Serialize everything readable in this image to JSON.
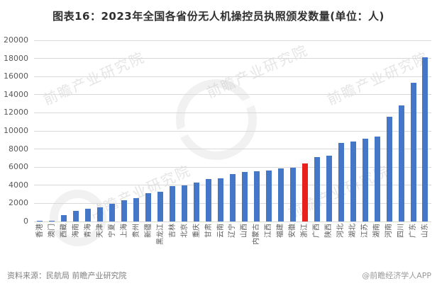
{
  "header": {
    "title": "图表16：2023年全国各省份无人机操控员执照颁发数量(单位：人)"
  },
  "footer": {
    "source": "资料来源：民航局 前瞻产业研究院",
    "brand": "@前瞻经济学人APP"
  },
  "watermark": {
    "text": "前瞻产业研究院"
  },
  "chart_data": {
    "type": "bar",
    "title": "图表16：2023年全国各省份无人机操控员执照颁发数量(单位：人)",
    "unit": "人",
    "categories": [
      "香港",
      "澳门",
      "西藏",
      "海南",
      "青海",
      "天津",
      "宁夏",
      "上海",
      "贵州",
      "新疆",
      "黑龙江",
      "吉林",
      "北京",
      "重庆",
      "甘肃",
      "云南",
      "辽宁",
      "山西",
      "内蒙古",
      "江西",
      "福建",
      "安徽",
      "浙江",
      "广西",
      "陕西",
      "河北",
      "湖北",
      "江苏",
      "湖南",
      "河南",
      "四川",
      "广东",
      "山东"
    ],
    "values": [
      80,
      30,
      700,
      1150,
      1400,
      1600,
      1950,
      2350,
      2550,
      3150,
      3300,
      3900,
      3950,
      4300,
      4700,
      4750,
      5200,
      5500,
      5550,
      5600,
      5850,
      5950,
      6400,
      7100,
      7300,
      8650,
      8850,
      9150,
      9400,
      11600,
      12800,
      15300,
      18100
    ],
    "highlight_index": 22,
    "highlight_category": "浙江",
    "bar_color": "#4577c8",
    "highlight_color": "#e8211d",
    "ylim": [
      0,
      20000
    ],
    "yticks": [
      0,
      2000,
      4000,
      6000,
      8000,
      10000,
      12000,
      14000,
      16000,
      18000,
      20000
    ],
    "grid": true,
    "legend": null,
    "xlabel": "",
    "ylabel": ""
  }
}
